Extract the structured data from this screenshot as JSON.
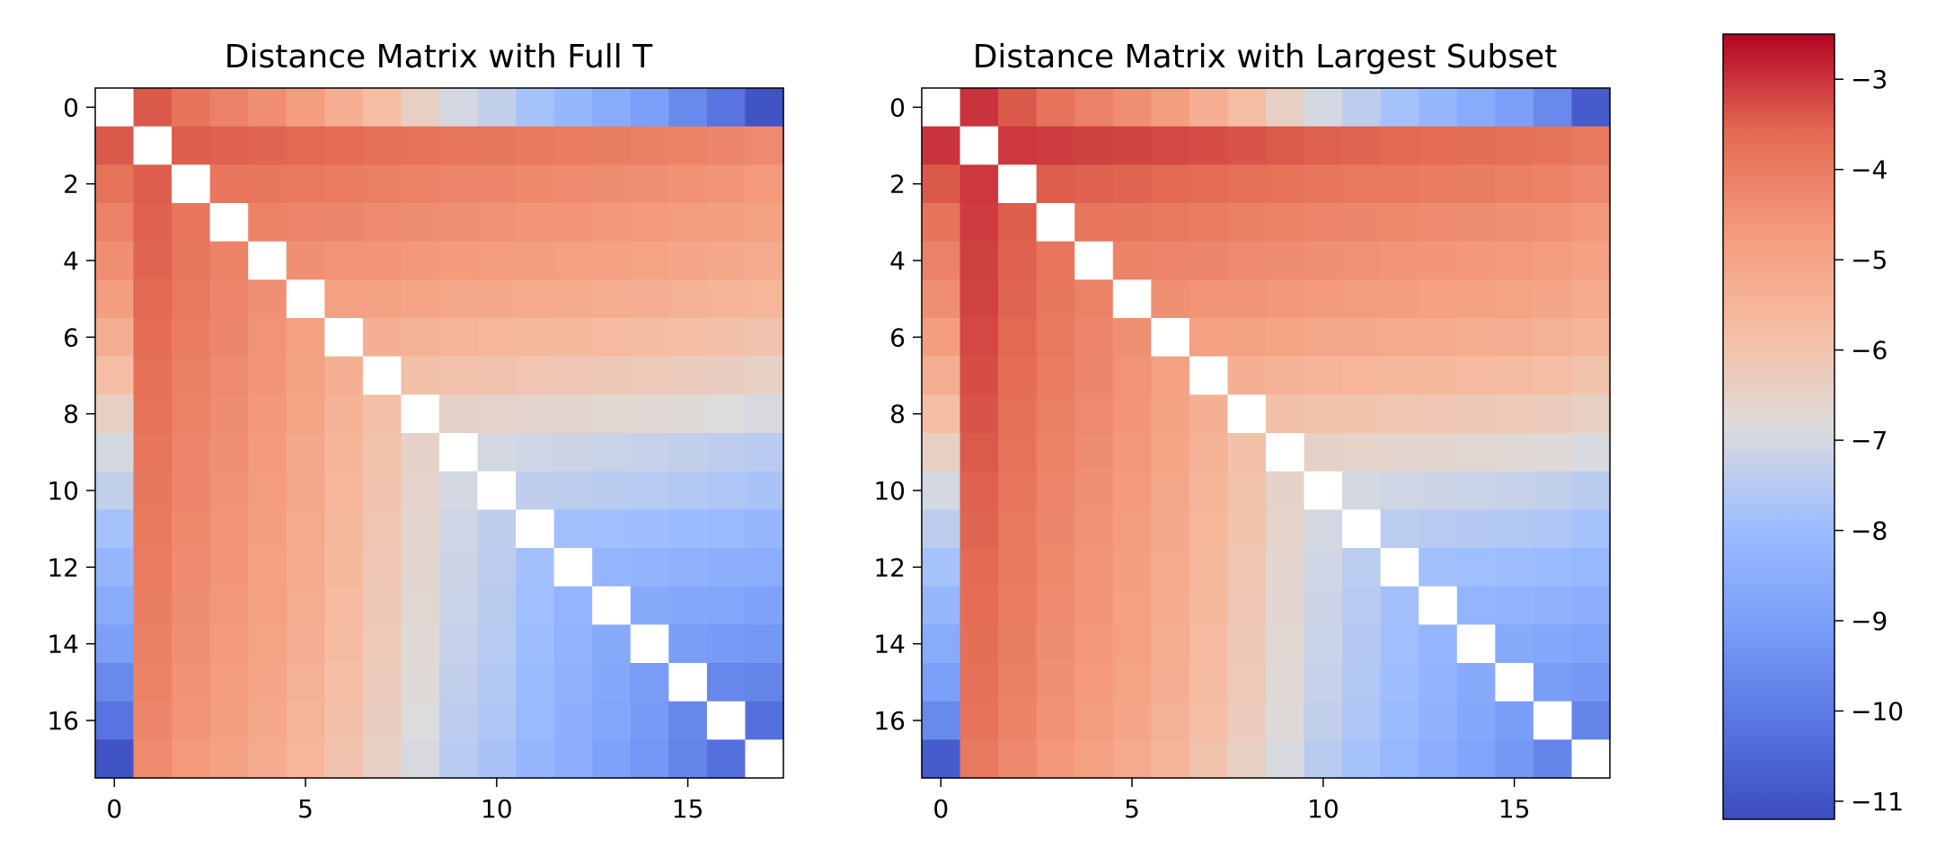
{
  "chart_data": [
    {
      "type": "heatmap",
      "title": "Distance Matrix with Full T",
      "xlabel": "",
      "ylabel": "",
      "size": 18,
      "diagonal": "blank",
      "xticks": [
        0,
        5,
        10,
        15
      ],
      "yticks": [
        0,
        2,
        4,
        6,
        8,
        10,
        12,
        14,
        16
      ],
      "row_levels": [
        -2.5,
        -3.4,
        -3.8,
        -4.1,
        -4.4,
        -4.8,
        -5.3,
        -5.8,
        -6.4,
        -7.0,
        -7.3,
        -7.8,
        -8.2,
        -8.6,
        -9.0,
        -9.6,
        -10.2,
        -11.0
      ],
      "colormap": "coolwarm",
      "vmin": -11.2,
      "vmax": -2.5
    },
    {
      "type": "heatmap",
      "title": "Distance Matrix with Largest Subset",
      "xlabel": "",
      "ylabel": "",
      "size": 18,
      "diagonal": "blank",
      "xticks": [
        0,
        5,
        10,
        15
      ],
      "yticks": [
        0,
        2,
        4,
        6,
        8,
        10,
        12,
        14,
        16
      ],
      "row_levels": [
        -2.5,
        -3.0,
        -3.4,
        -3.8,
        -4.1,
        -4.4,
        -4.8,
        -5.3,
        -5.8,
        -6.4,
        -7.0,
        -7.4,
        -7.8,
        -8.2,
        -8.6,
        -9.0,
        -9.6,
        -10.8
      ],
      "colormap": "coolwarm",
      "vmin": -11.2,
      "vmax": -2.5
    }
  ],
  "colorbar": {
    "label": "",
    "ticks": [
      -3,
      -4,
      -5,
      -6,
      -7,
      -8,
      -9,
      -10,
      -11
    ],
    "tick_labels": [
      "−3",
      "−4",
      "−5",
      "−6",
      "−7",
      "−8",
      "−9",
      "−10",
      "−11"
    ],
    "vmin": -11.2,
    "vmax": -2.5
  }
}
